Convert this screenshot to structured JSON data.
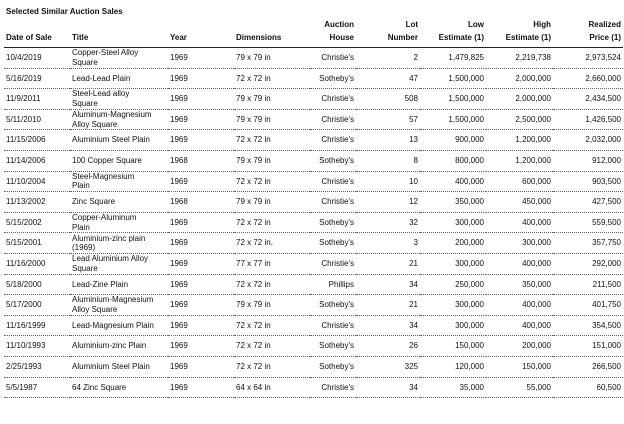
{
  "title": "Selected Similar Auction Sales",
  "columns": [
    {
      "line1": "",
      "line2": "Date of Sale"
    },
    {
      "line1": "",
      "line2": "Title"
    },
    {
      "line1": "",
      "line2": "Year"
    },
    {
      "line1": "",
      "line2": "Dimensions"
    },
    {
      "line1": "Auction",
      "line2": "House"
    },
    {
      "line1": "Lot",
      "line2": "Number"
    },
    {
      "line1": "Low",
      "line2": "Estimate (1)"
    },
    {
      "line1": "High",
      "line2": "Estimate (1)"
    },
    {
      "line1": "Realized",
      "line2": "Price (1)"
    }
  ],
  "rows": [
    [
      "10/4/2019",
      "Copper-Steel Alloy Square",
      "1969",
      "79 x 79 in",
      "Christie's",
      "2",
      "1,479,825",
      "2,219,738",
      "2,973,524"
    ],
    [
      "5/16/2019",
      "Lead-Lead Plain",
      "1969",
      "72 x 72 in",
      "Sotheby's",
      "47",
      "1,500,000",
      "2,000,000",
      "2,660,000"
    ],
    [
      "11/9/2011",
      "Steel-Lead alloy Square",
      "1969",
      "79 x 79 in",
      "Christie's",
      "508",
      "1,500,000",
      "2,000,000",
      "2,434,500"
    ],
    [
      "5/11/2010",
      "Aluminum-Magnesium Alloy Square",
      "1969",
      "79 x 79 in",
      "Christie's",
      "57",
      "1,500,000",
      "2,500,000",
      "1,426,500"
    ],
    [
      "11/15/2006",
      "Aluminium Steel Plain",
      "1969",
      "72 x 72 in",
      "Christie's",
      "13",
      "900,000",
      "1,200,000",
      "2,032,000"
    ],
    [
      "11/14/2006",
      "100 Copper Square",
      "1968",
      "79 x 79 in",
      "Sotheby's",
      "8",
      "800,000",
      "1,200,000",
      "912,000"
    ],
    [
      "11/10/2004",
      "Steel-Magnesium Plain",
      "1969",
      "72 x 72 in",
      "Christie's",
      "10",
      "400,000",
      "600,000",
      "903,500"
    ],
    [
      "11/13/2002",
      "Zinc Square",
      "1968",
      "79 x 79 in",
      "Christie's",
      "12",
      "350,000",
      "450,000",
      "427,500"
    ],
    [
      "5/15/2002",
      "Copper-Aluminum Plain",
      "1969",
      "72 x 72 in",
      "Sotheby's",
      "32",
      "300,000",
      "400,000",
      "559,500"
    ],
    [
      "5/15/2001",
      "Aluminium-zinc plain (1969)",
      "1969",
      "72 x 72 in.",
      "Sotheby's",
      "3",
      "200,000",
      "300,000",
      "357,750"
    ],
    [
      "11/16/2000",
      "Lead Aluminium Alloy Square",
      "1969",
      "77 x 77 in",
      "Christie's",
      "21",
      "300,000",
      "400,000",
      "292,000"
    ],
    [
      "5/18/2000",
      "Lead-Zine Plain",
      "1969",
      "72 x 72 in",
      "Phillips",
      "34",
      "250,000",
      "350,000",
      "211,500"
    ],
    [
      "5/17/2000",
      "Aluminium-Magnesium Alloy Square",
      "1969",
      "79 x 79 in",
      "Sotheby's",
      "21",
      "300,000",
      "400,000",
      "401,750"
    ],
    [
      "11/16/1999",
      "Lead-Magnesium Plain",
      "1969",
      "72 x 72 in",
      "Christie's",
      "34",
      "300,000",
      "400,000",
      "354,500"
    ],
    [
      "11/10/1993",
      "Aluminium-zinc Plain",
      "1969",
      "72 x 72 in",
      "Sotheby's",
      "26",
      "150,000",
      "200,000",
      "151,000"
    ],
    [
      "2/25/1993",
      "Aluminium Steel Plain",
      "1969",
      "72 x 72 in",
      "Sotheby's",
      "325",
      "120,000",
      "150,000",
      "266,500"
    ],
    [
      "5/5/1987",
      "64 Zinc Square",
      "1969",
      "64 x 64 in",
      "Christie's",
      "34",
      "35,000",
      "55,000",
      "60,500"
    ]
  ]
}
